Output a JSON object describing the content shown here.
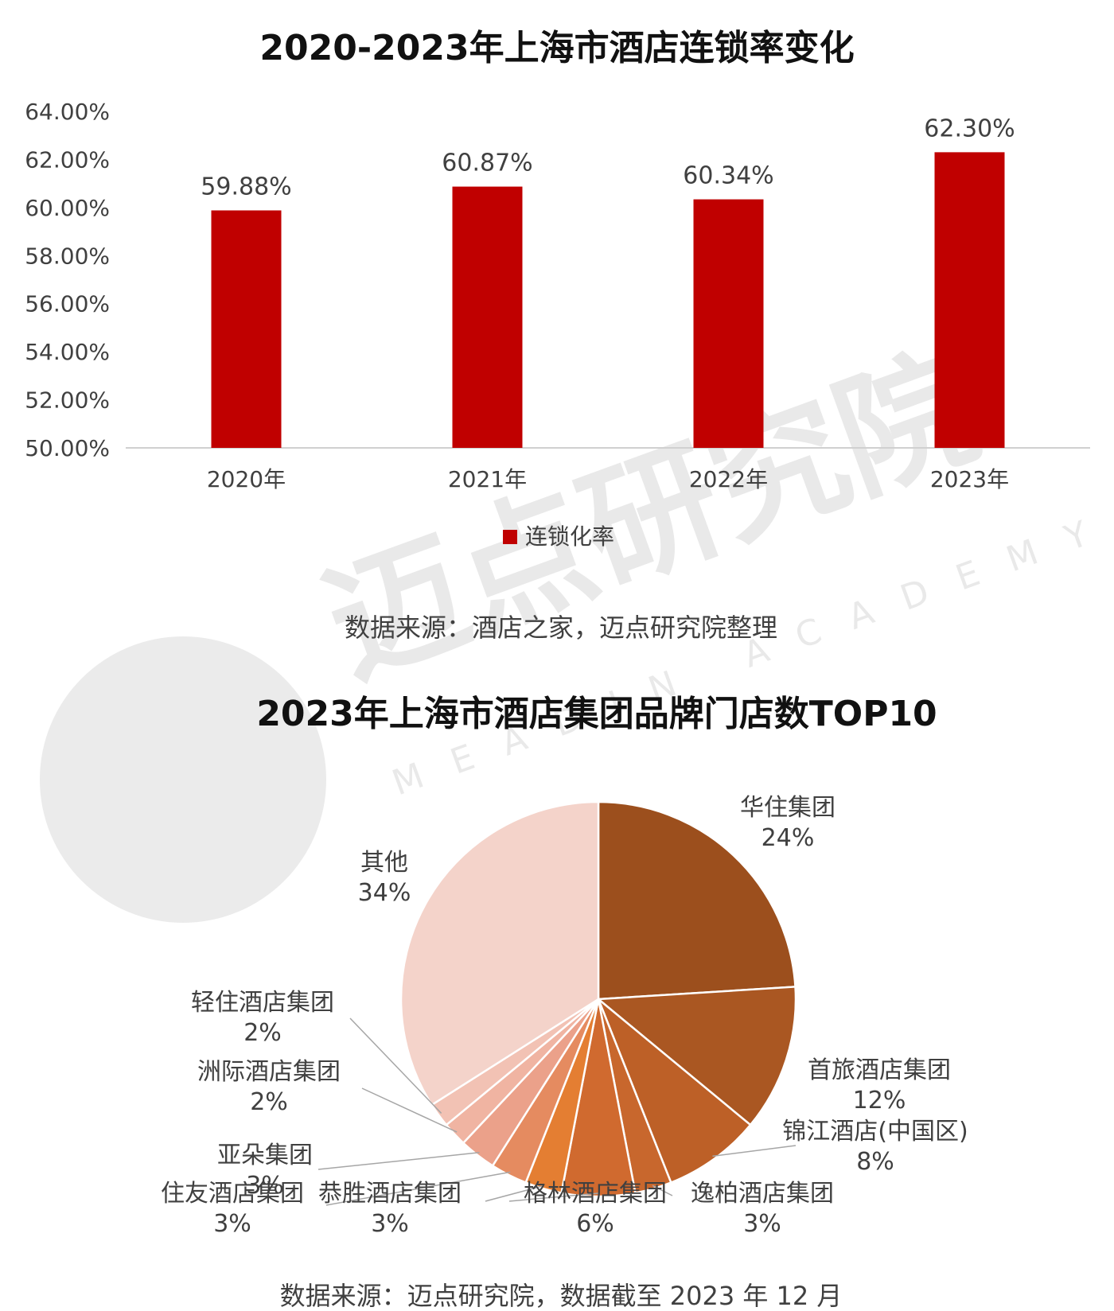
{
  "watermark": {
    "text": "迈点研究院",
    "subtext": "MEADIN ACADEMY"
  },
  "chart_data": [
    {
      "type": "bar",
      "title": "2020-2023年上海市酒店连锁率变化",
      "categories": [
        "2020年",
        "2021年",
        "2022年",
        "2023年"
      ],
      "series": [
        {
          "name": "连锁化率",
          "values": [
            59.88,
            60.87,
            60.34,
            62.3
          ],
          "color": "#c00000"
        }
      ],
      "data_labels": [
        "59.88%",
        "60.87%",
        "60.34%",
        "62.30%"
      ],
      "ylim": [
        50,
        64
      ],
      "y_ticks": [
        "50.00%",
        "52.00%",
        "54.00%",
        "56.00%",
        "58.00%",
        "60.00%",
        "62.00%",
        "64.00%"
      ],
      "grid": false,
      "legend_position": "bottom",
      "source": "数据来源：酒店之家，迈点研究院整理"
    },
    {
      "type": "pie",
      "title": "2023年上海市酒店集团品牌门店数TOP10",
      "slices": [
        {
          "label": "华住集团",
          "value": 24,
          "pct": "24%",
          "color": "#9c4f1d"
        },
        {
          "label": "首旅酒店集团",
          "value": 12,
          "pct": "12%",
          "color": "#aa5722"
        },
        {
          "label": "锦江酒店(中国区)",
          "value": 8,
          "pct": "8%",
          "color": "#bd6027"
        },
        {
          "label": "逸柏酒店集团",
          "value": 3,
          "pct": "3%",
          "color": "#c8672d"
        },
        {
          "label": "格林酒店集团",
          "value": 6,
          "pct": "6%",
          "color": "#d06a2f"
        },
        {
          "label": "恭胜酒店集团",
          "value": 3,
          "pct": "3%",
          "color": "#e47e32"
        },
        {
          "label": "住友酒店集团",
          "value": 3,
          "pct": "3%",
          "color": "#e58b60"
        },
        {
          "label": "亚朵集团",
          "value": 3,
          "pct": "3%",
          "color": "#eba18a"
        },
        {
          "label": "洲际酒店集团",
          "value": 2,
          "pct": "2%",
          "color": "#f0b4a2"
        },
        {
          "label": "轻住酒店集团",
          "value": 2,
          "pct": "2%",
          "color": "#f2c2b4"
        },
        {
          "label": "其他",
          "value": 34,
          "pct": "34%",
          "color": "#f4d3ca"
        }
      ],
      "source": "数据来源：迈点研究院，数据截至 2023 年 12 月"
    }
  ]
}
